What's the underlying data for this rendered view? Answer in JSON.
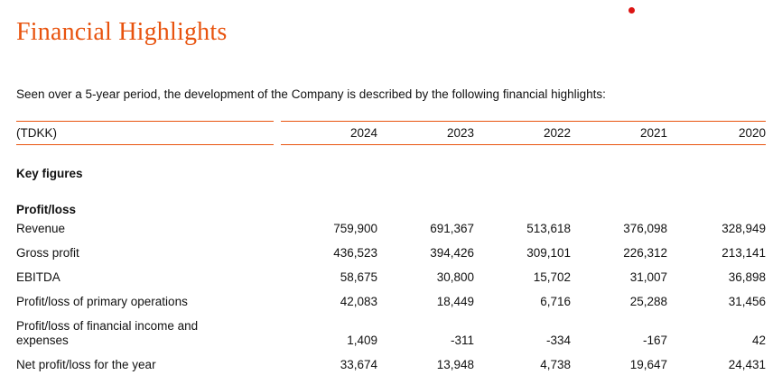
{
  "header": {
    "title": "Financial Highlights",
    "accent_color": "#E8530E",
    "red_dot_color": "#DC1413"
  },
  "intro": {
    "text": "Seen over a 5-year period, the development of the Company is described by the following financial highlights:"
  },
  "table": {
    "unit_label": "(TDKK)",
    "years": [
      "2024",
      "2023",
      "2022",
      "2021",
      "2020"
    ],
    "sections": [
      {
        "heading": "Key figures",
        "rows": []
      },
      {
        "heading": "Profit/loss",
        "rows": [
          {
            "label": "Revenue",
            "values": [
              "759,900",
              "691,367",
              "513,618",
              "376,098",
              "328,949"
            ]
          },
          {
            "label": "Gross profit",
            "values": [
              "436,523",
              "394,426",
              "309,101",
              "226,312",
              "213,141"
            ]
          },
          {
            "label": "EBITDA",
            "values": [
              "58,675",
              "30,800",
              "15,702",
              "31,007",
              "36,898"
            ]
          },
          {
            "label": "Profit/loss of primary operations",
            "values": [
              "42,083",
              "18,449",
              "6,716",
              "25,288",
              "31,456"
            ]
          },
          {
            "label": "Profit/loss of financial income and expenses",
            "values": [
              "1,409",
              "-311",
              "-334",
              "-167",
              "42"
            ]
          },
          {
            "label": "Net profit/loss for the year",
            "values": [
              "33,674",
              "13,948",
              "4,738",
              "19,647",
              "24,431"
            ]
          }
        ]
      }
    ]
  }
}
